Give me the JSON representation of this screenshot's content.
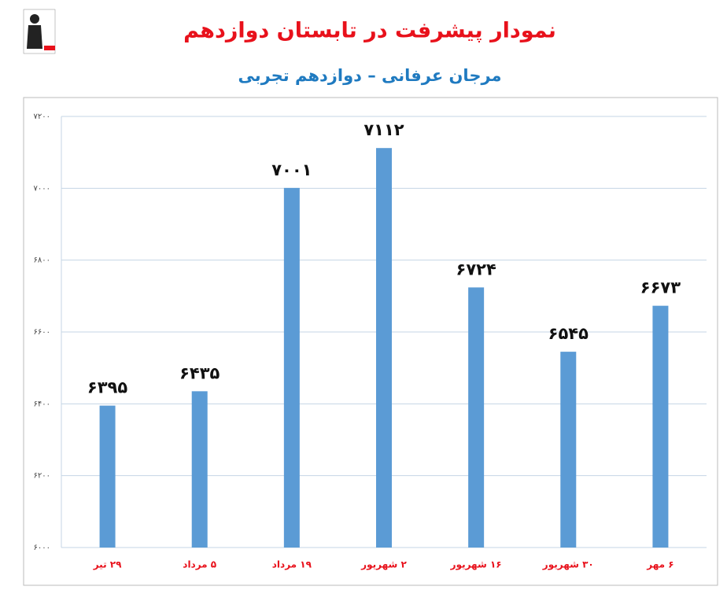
{
  "chart_data": {
    "type": "bar",
    "title": "نمودار پیشرفت در تابستان دوازدهم",
    "subtitle": "مرجان عرفانی – دوازدهم تجربی",
    "categories": [
      "۲۹ تیر",
      "۵ مرداد",
      "۱۹ مرداد",
      "۲ شهریور",
      "۱۶ شهریور",
      "۳۰ شهریور",
      "۶ مهر"
    ],
    "values": [
      6395,
      6435,
      7001,
      7112,
      6724,
      6545,
      6673
    ],
    "value_labels": [
      "۶۳۹۵",
      "۶۴۳۵",
      "۷۰۰۱",
      "۷۱۱۲",
      "۶۷۲۴",
      "۶۵۴۵",
      "۶۶۷۳"
    ],
    "color": "#5b9bd5",
    "ylim": [
      6000,
      7200
    ],
    "yticks": [
      {
        "value": 6000,
        "label": "۶۰۰۰"
      },
      {
        "value": 6200,
        "label": "۶۲۰۰"
      },
      {
        "value": 6400,
        "label": "۶۴۰۰"
      },
      {
        "value": 6600,
        "label": "۶۶۰۰"
      },
      {
        "value": 6800,
        "label": "۶۸۰۰"
      },
      {
        "value": 7000,
        "label": "۷۰۰۰"
      },
      {
        "value": 7200,
        "label": "۷۲۰۰"
      }
    ],
    "grid": true
  }
}
